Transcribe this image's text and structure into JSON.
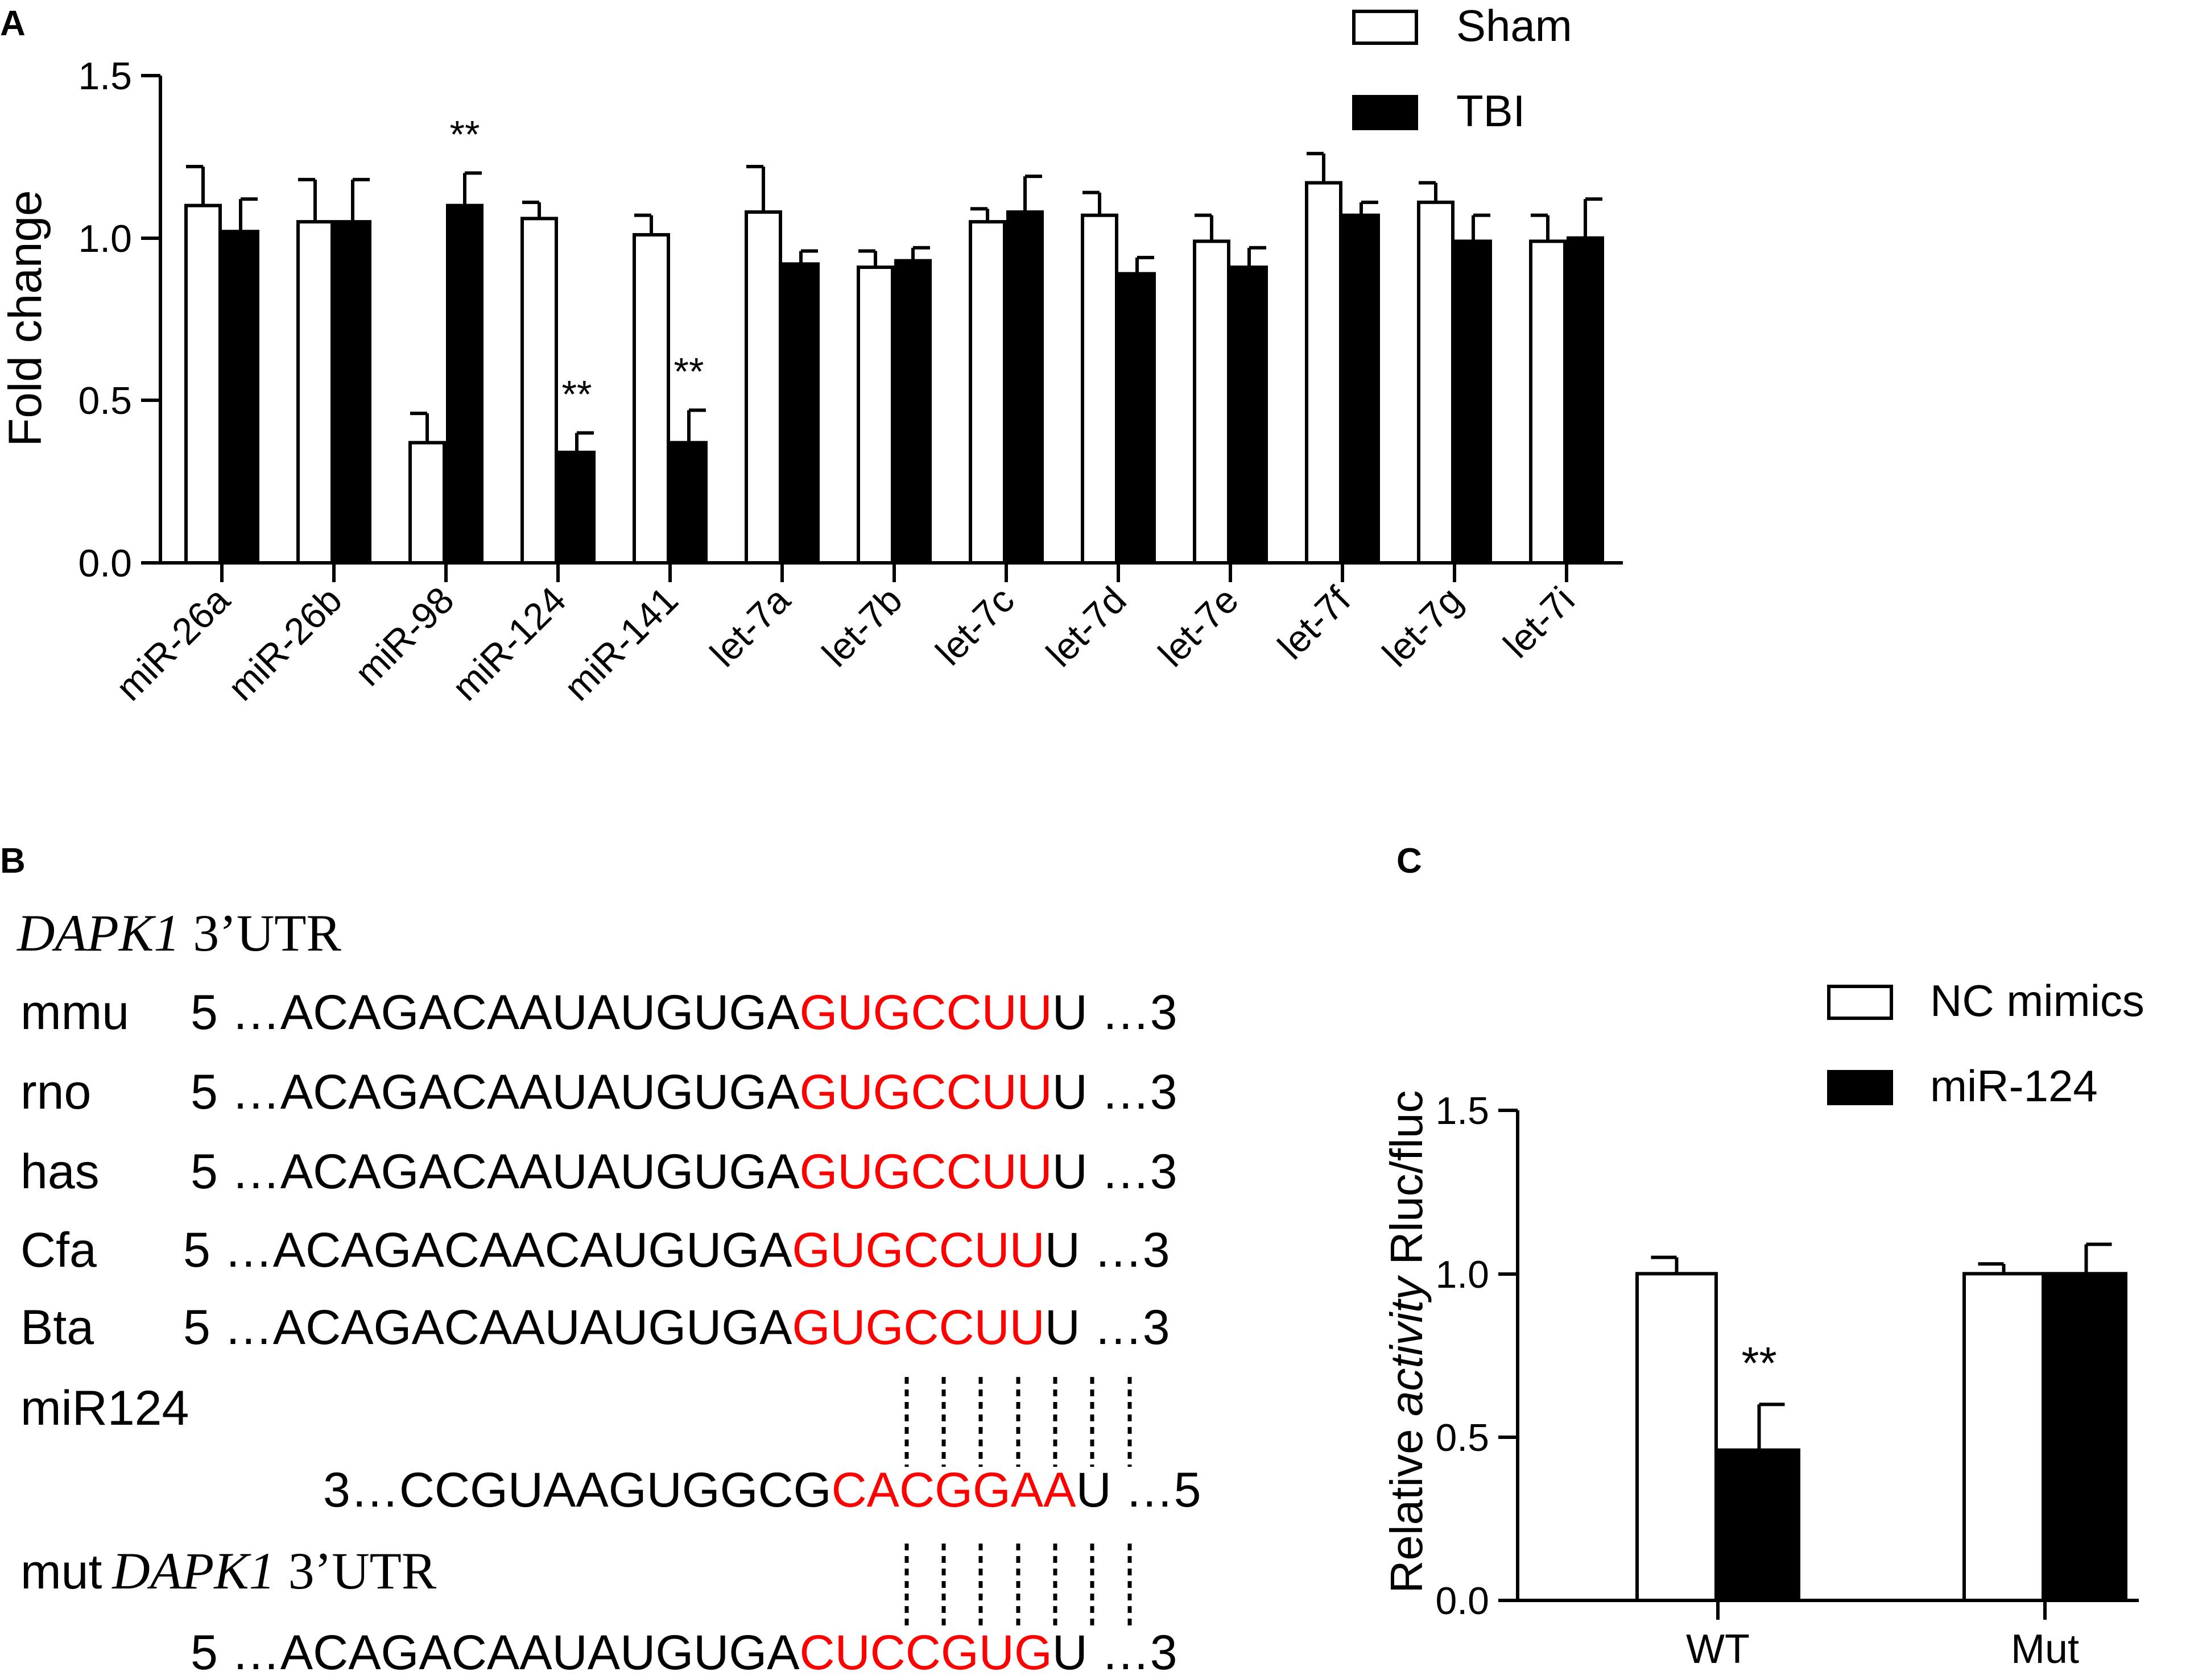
{
  "panel_a": {
    "letter": "A",
    "legend": [
      {
        "label": "Sham",
        "fill": "#ffffff"
      },
      {
        "label": "TBI",
        "fill": "#000000"
      }
    ]
  },
  "panel_b": {
    "letter": "B",
    "gene": "DAPK1",
    "utr": " 3’UTR",
    "rows": [
      {
        "species": "mmu",
        "prefix": "5 …ACAGACAAUAUGUGA",
        "site": "GUGCCUU",
        "suffix": "U …3"
      },
      {
        "species": "rno",
        "prefix": "5 …ACAGACAAUAUGUGA",
        "site": "GUGCCUU",
        "suffix": "U …3"
      },
      {
        "species": "has",
        "prefix": "5 …ACAGACAAUAUGUGA",
        "site": "GUGCCUU",
        "suffix": "U …3"
      },
      {
        "species": "Cfa",
        "prefix": "5 …ACAGACAACAUGUGA",
        "site": "GUGCCUU",
        "suffix": "U …3"
      },
      {
        "species": "Bta",
        "prefix": "5 …ACAGACAAUAUGUGA",
        "site": "GUGCCUU",
        "suffix": "U …3"
      }
    ],
    "mirna_label": "miR124",
    "mirna": {
      "prefix": "3…CCGUAAGUGGCG",
      "site": "CACGGAA",
      "suffix": "U …5"
    },
    "mut_label": "mut",
    "mut": {
      "prefix": "5 …ACAGACAAUAUGUGA",
      "site": "CUCCGUG",
      "suffix": "U …3"
    },
    "site_color": "#ff0000"
  },
  "panel_c": {
    "letter": "C",
    "legend": [
      {
        "label": "NC mimics",
        "fill": "#ffffff"
      },
      {
        "label": "miR-124",
        "fill": "#000000"
      }
    ]
  },
  "chart_data": [
    {
      "type": "bar",
      "panel": "A",
      "ylabel": "Fold change",
      "ylim": [
        0,
        1.5
      ],
      "yticks": [
        "0.0",
        "0.5",
        "1.0",
        "1.5"
      ],
      "categories": [
        "miR-26a",
        "miR-26b",
        "miR-98",
        "miR-124",
        "miR-141",
        "let-7a",
        "let-7b",
        "let-7c",
        "let-7d",
        "let-7e",
        "let-7f",
        "let-7g",
        "let-7i"
      ],
      "series": [
        {
          "name": "Sham",
          "values": [
            1.1,
            1.05,
            0.37,
            1.06,
            1.01,
            1.08,
            0.91,
            1.05,
            1.07,
            0.99,
            1.17,
            1.11,
            0.99
          ],
          "errors": [
            0.12,
            0.13,
            0.09,
            0.05,
            0.06,
            0.14,
            0.05,
            0.04,
            0.07,
            0.08,
            0.09,
            0.06,
            0.08
          ]
        },
        {
          "name": "TBI",
          "values": [
            1.02,
            1.05,
            1.1,
            0.34,
            0.37,
            0.92,
            0.93,
            1.08,
            0.89,
            0.91,
            1.07,
            0.99,
            1.0
          ],
          "errors": [
            0.1,
            0.13,
            0.1,
            0.06,
            0.1,
            0.04,
            0.04,
            0.11,
            0.05,
            0.06,
            0.04,
            0.08,
            0.12
          ]
        }
      ],
      "annotations": [
        {
          "category": "miR-98",
          "series": "TBI",
          "text": "**"
        },
        {
          "category": "miR-124",
          "series": "TBI",
          "text": "**"
        },
        {
          "category": "miR-141",
          "series": "TBI",
          "text": "**"
        }
      ]
    },
    {
      "type": "bar",
      "panel": "C",
      "ylabel_prefix": "Relative ",
      "ylabel_italic": "activity",
      "ylabel_suffix": " Rluc/fluc",
      "ylim": [
        0,
        1.5
      ],
      "yticks": [
        "0.0",
        "0.5",
        "1.0",
        "1.5"
      ],
      "categories": [
        "WT",
        "Mut"
      ],
      "series": [
        {
          "name": "NC mimics",
          "values": [
            1.0,
            1.0
          ],
          "errors": [
            0.05,
            0.03
          ]
        },
        {
          "name": "miR-124",
          "values": [
            0.46,
            1.0
          ],
          "errors": [
            0.14,
            0.09
          ]
        }
      ],
      "annotations": [
        {
          "category": "WT",
          "series": "miR-124",
          "text": "**"
        }
      ]
    }
  ]
}
